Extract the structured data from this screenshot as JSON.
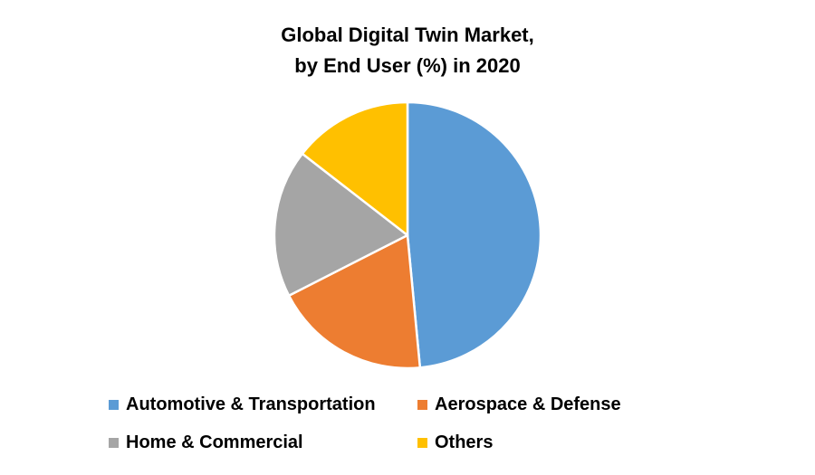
{
  "title_line1": "Global Digital Twin Market,",
  "title_line2": "by End User (%) in 2020",
  "chart_data": {
    "type": "pie",
    "title": "Global Digital Twin Market, by End User (%) in 2020",
    "legend_placement": "bottom",
    "slices": [
      {
        "label": "Automotive & Transportation",
        "value": 48.5,
        "color": "#5B9BD5"
      },
      {
        "label": "Aerospace & Defense",
        "value": 19.0,
        "color": "#ED7D31"
      },
      {
        "label": "Home & Commercial",
        "value": 18.0,
        "color": "#A5A5A5"
      },
      {
        "label": "Others",
        "value": 14.5,
        "color": "#FFC000"
      }
    ]
  }
}
